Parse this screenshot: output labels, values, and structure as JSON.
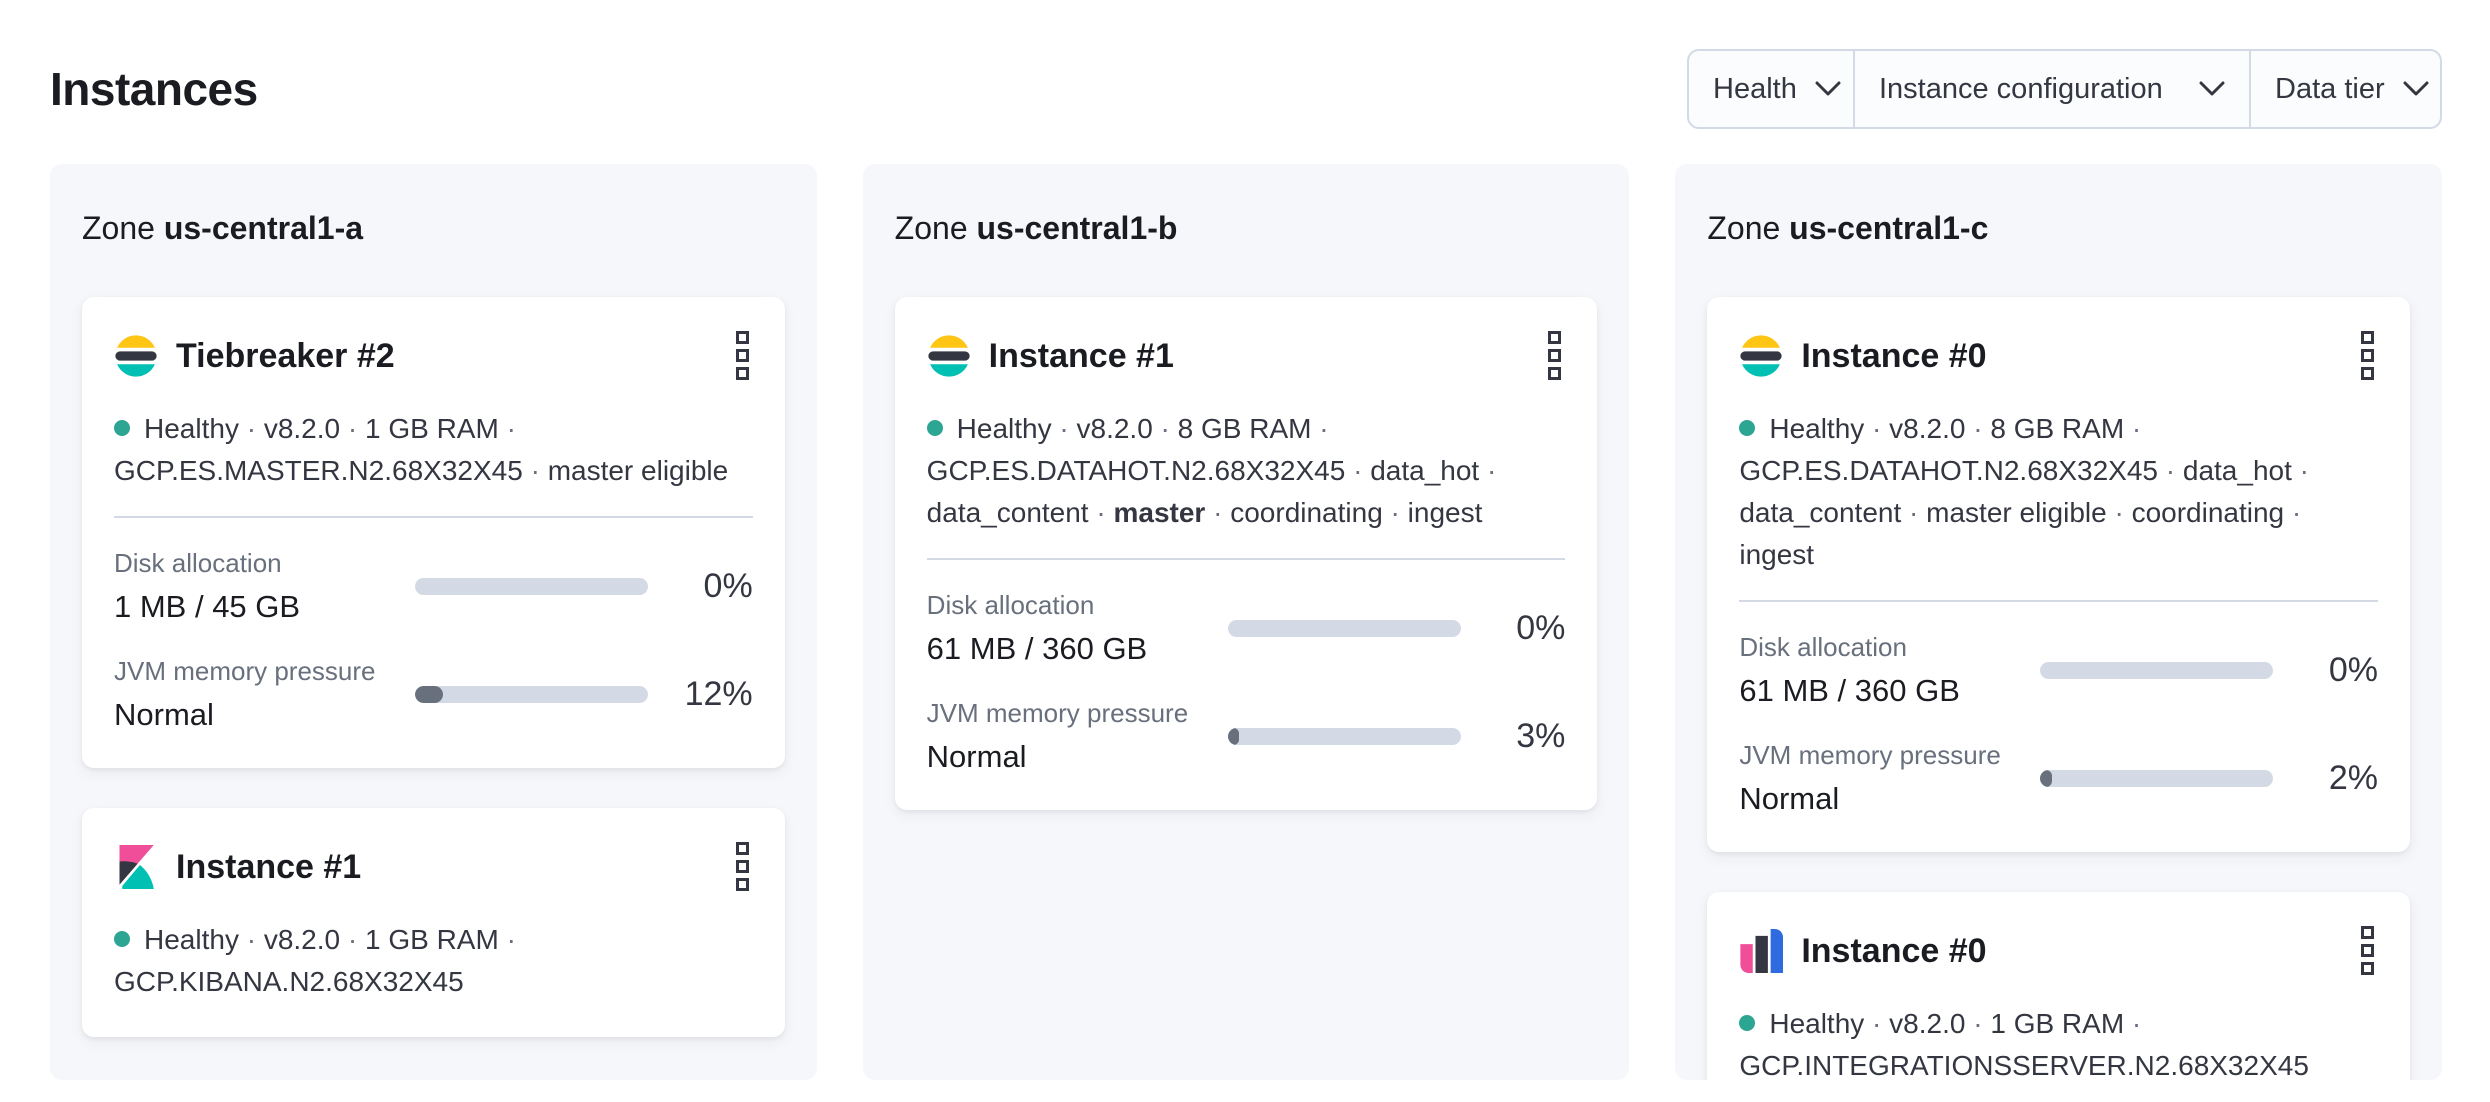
{
  "page": {
    "heading": "Instances"
  },
  "filters": {
    "health_label": "Health",
    "instance_configuration_label": "Instance configuration",
    "data_tier_label": "Data tier"
  },
  "colors": {
    "accent_teal": "#00bfb3",
    "healthy_dot": "#2da593",
    "logo_yellow": "#fec514",
    "logo_dark": "#343741",
    "logo_pink": "#f04e98",
    "logo_blue": "#2d6bdf",
    "panel_bg": "#f5f7fa",
    "track": "#d3dae6",
    "bar_fill": "#69707d"
  },
  "zones": [
    {
      "prefix": "Zone",
      "name": "us-central1-a",
      "cards": [
        {
          "icon": "elasticsearch-logo",
          "title": "Tiebreaker #2",
          "status": [
            {
              "t": "Healthy"
            },
            {
              "t": "v8.2.0"
            },
            {
              "t": "1 GB RAM"
            },
            {
              "t": "GCP.ES.MASTER.N2.68X32X45"
            },
            {
              "t": "master eligible"
            }
          ],
          "metrics": {
            "disk": {
              "label": "Disk allocation",
              "value": "1 MB / 45 GB",
              "percent": "0%",
              "fill": 0
            },
            "jvm": {
              "label": "JVM memory pressure",
              "value": "Normal",
              "percent": "12%",
              "fill": 12
            }
          }
        },
        {
          "icon": "kibana-logo",
          "title": "Instance #1",
          "status": [
            {
              "t": "Healthy"
            },
            {
              "t": "v8.2.0"
            },
            {
              "t": "1 GB RAM"
            },
            {
              "t": "GCP.KIBANA.N2.68X32X45"
            }
          ]
        }
      ]
    },
    {
      "prefix": "Zone",
      "name": "us-central1-b",
      "cards": [
        {
          "icon": "elasticsearch-logo",
          "title": "Instance #1",
          "status": [
            {
              "t": "Healthy"
            },
            {
              "t": "v8.2.0"
            },
            {
              "t": "8 GB RAM"
            },
            {
              "t": "GCP.ES.DATAHOT.N2.68X32X45"
            },
            {
              "t": "data_hot"
            },
            {
              "t": "data_content"
            },
            {
              "t": "master",
              "b": true
            },
            {
              "t": "coordinating"
            },
            {
              "t": "ingest"
            }
          ],
          "metrics": {
            "disk": {
              "label": "Disk allocation",
              "value": "61 MB / 360 GB",
              "percent": "0%",
              "fill": 0
            },
            "jvm": {
              "label": "JVM memory pressure",
              "value": "Normal",
              "percent": "3%",
              "fill": 3
            }
          }
        }
      ]
    },
    {
      "prefix": "Zone",
      "name": "us-central1-c",
      "cards": [
        {
          "icon": "elasticsearch-logo",
          "title": "Instance #0",
          "status": [
            {
              "t": "Healthy"
            },
            {
              "t": "v8.2.0"
            },
            {
              "t": "8 GB RAM"
            },
            {
              "t": "GCP.ES.DATAHOT.N2.68X32X45"
            },
            {
              "t": "data_hot"
            },
            {
              "t": "data_content"
            },
            {
              "t": "master eligible"
            },
            {
              "t": "coordinating"
            },
            {
              "t": "ingest"
            }
          ],
          "metrics": {
            "disk": {
              "label": "Disk allocation",
              "value": "61 MB / 360 GB",
              "percent": "0%",
              "fill": 0
            },
            "jvm": {
              "label": "JVM memory pressure",
              "value": "Normal",
              "percent": "2%",
              "fill": 2
            }
          }
        },
        {
          "icon": "integrations-server-logo",
          "title": "Instance #0",
          "status": [
            {
              "t": "Healthy"
            },
            {
              "t": "v8.2.0"
            },
            {
              "t": "1 GB RAM"
            },
            {
              "t": "GCP.INTEGRATIONSSERVER.N2.68X32X45"
            }
          ]
        }
      ]
    }
  ]
}
